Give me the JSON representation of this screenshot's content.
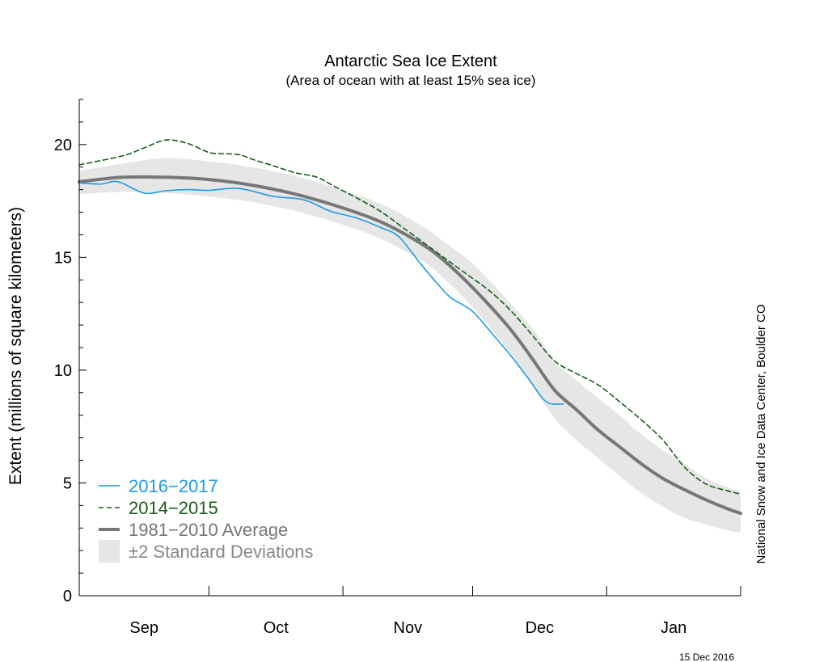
{
  "chart_data": {
    "type": "line",
    "title": "Antarctic Sea Ice Extent",
    "subtitle": "(Area of ocean with at least 15% sea ice)",
    "ylabel": "Extent (millions of square kilometers)",
    "xlabel": "",
    "ylim": [
      0,
      22
    ],
    "yticks": [
      0,
      5,
      10,
      15,
      20
    ],
    "x_domain_days": [
      0,
      153
    ],
    "month_ticks": [
      0,
      30,
      61,
      91,
      122,
      153
    ],
    "month_labels": [
      {
        "label": "Sep",
        "center": 15
      },
      {
        "label": "Oct",
        "center": 45.5
      },
      {
        "label": "Nov",
        "center": 76
      },
      {
        "label": "Dec",
        "center": 106.5
      },
      {
        "label": "Jan",
        "center": 137.5
      }
    ],
    "grid": false,
    "legend_position": "bottom-left",
    "series": [
      {
        "name": "2016−2017",
        "style": "solid",
        "color": "#1e9be6",
        "x": [
          0,
          5,
          9,
          15,
          20,
          25,
          30,
          37,
          45,
          52,
          58,
          64,
          70,
          74,
          79,
          83,
          86,
          91,
          96,
          100,
          104,
          108,
          112
        ],
        "values": [
          18.3,
          18.25,
          18.35,
          17.85,
          17.95,
          18.0,
          17.97,
          18.05,
          17.7,
          17.55,
          17.05,
          16.75,
          16.3,
          15.9,
          14.7,
          13.8,
          13.2,
          12.6,
          11.5,
          10.6,
          9.6,
          8.6,
          8.5
        ]
      },
      {
        "name": "2014−2015",
        "style": "dashed",
        "color": "#1a5c1a",
        "x": [
          0,
          10,
          15,
          20,
          25,
          30,
          33,
          37,
          40,
          45,
          50,
          55,
          59,
          65,
          70,
          75,
          80,
          85,
          90,
          95,
          100,
          105,
          110,
          115,
          120,
          125,
          130,
          135,
          140,
          145,
          150,
          153
        ],
        "values": [
          19.1,
          19.5,
          19.85,
          20.2,
          20.05,
          19.65,
          19.6,
          19.55,
          19.35,
          19.05,
          18.75,
          18.55,
          18.15,
          17.55,
          17.0,
          16.3,
          15.6,
          14.9,
          14.2,
          13.5,
          12.6,
          11.5,
          10.4,
          9.85,
          9.35,
          8.6,
          7.8,
          6.9,
          5.7,
          4.95,
          4.65,
          4.5
        ]
      },
      {
        "name": "1981−2010 Average",
        "style": "solid",
        "color": "#777777",
        "x": [
          0,
          10,
          20,
          30,
          40,
          50,
          60,
          70,
          80,
          85,
          90,
          95,
          100,
          105,
          110,
          115,
          120,
          125,
          130,
          135,
          140,
          145,
          150,
          153
        ],
        "values": [
          18.35,
          18.55,
          18.55,
          18.45,
          18.2,
          17.8,
          17.25,
          16.55,
          15.5,
          14.75,
          13.85,
          12.85,
          11.75,
          10.45,
          9.1,
          8.25,
          7.35,
          6.6,
          5.85,
          5.2,
          4.7,
          4.25,
          3.85,
          3.65
        ]
      }
    ],
    "std_band": {
      "name": "±2 Standard Deviations",
      "color": "#e6e6e6",
      "x": [
        0,
        10,
        20,
        30,
        40,
        50,
        60,
        70,
        80,
        85,
        90,
        95,
        100,
        105,
        110,
        115,
        120,
        125,
        130,
        135,
        140,
        145,
        150,
        153
      ],
      "upper": [
        18.85,
        19.15,
        19.4,
        19.25,
        19.0,
        18.6,
        18.05,
        17.35,
        16.3,
        15.6,
        14.9,
        13.95,
        12.9,
        11.8,
        10.4,
        9.55,
        8.75,
        8.0,
        7.15,
        6.45,
        5.85,
        5.2,
        4.8,
        4.6
      ],
      "lower": [
        17.8,
        17.9,
        17.85,
        17.7,
        17.45,
        17.05,
        16.5,
        15.8,
        14.75,
        13.95,
        13.0,
        11.9,
        10.7,
        9.25,
        7.85,
        6.9,
        6.1,
        5.3,
        4.55,
        3.95,
        3.45,
        3.15,
        2.9,
        2.8
      ]
    }
  },
  "legend": [
    {
      "label": "2016−2017",
      "color": "#1e9be6",
      "kind": "solid"
    },
    {
      "label": "2014−2015",
      "color": "#1a5c1a",
      "kind": "dashed"
    },
    {
      "label": "1981−2010 Average",
      "color": "#777777",
      "kind": "thick"
    },
    {
      "label": "±2 Standard Deviations",
      "color": "#888888",
      "kind": "band"
    }
  ],
  "credit": "National Snow and Ice Data Center, Boulder CO",
  "date_stamp": "15 Dec 2016"
}
